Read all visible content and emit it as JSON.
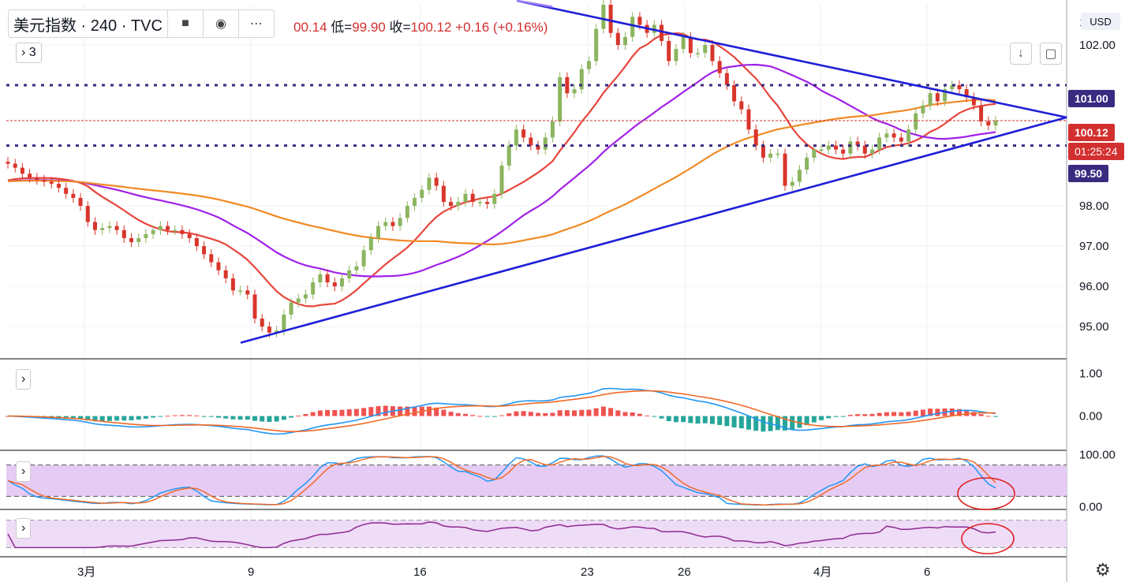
{
  "header": {
    "symbol": "美元指数 · 240 · TVC",
    "ohlc_tail": "00.14",
    "low_label": "低=",
    "low_value": "99.90",
    "close_label": "收=",
    "close_value": "100.12",
    "change": "+0.16 (+0.16%)"
  },
  "indicator_count": "3",
  "currency_label": "USD",
  "price_tags": {
    "resistance": "101.00",
    "last": "100.12",
    "countdown": "01:25:24",
    "support": "99.50"
  },
  "colors": {
    "up": "#8bb55f",
    "down": "#d8352b",
    "trend": "#1e1ed8",
    "ma_fast": "#e8453c",
    "ma_mid": "#a020e8",
    "ma_slow": "#f08a24",
    "level": "#3a2a80",
    "macd_line": "#2196f3",
    "signal_line": "#f06a28",
    "hist_pos": "#ef5350",
    "hist_neg": "#26a69a"
  },
  "chart_data": [
    {
      "type": "candlestick",
      "ylim": [
        94.2,
        103.0
      ],
      "y_ticks": [
        "95.00",
        "96.00",
        "97.00",
        "98.00",
        "102.00"
      ],
      "x_ticks": [
        "3月",
        "9",
        "16",
        "23",
        "26",
        "4月",
        "6"
      ],
      "horizontal_levels": [
        101.0,
        100.12,
        99.5
      ],
      "close_series": [
        99.05,
        98.95,
        98.8,
        98.7,
        98.65,
        98.6,
        98.55,
        98.45,
        98.3,
        98.2,
        98.0,
        97.6,
        97.4,
        97.45,
        97.5,
        97.4,
        97.2,
        97.1,
        97.2,
        97.3,
        97.4,
        97.5,
        97.4,
        97.4,
        97.3,
        97.2,
        97.0,
        96.8,
        96.6,
        96.4,
        96.2,
        95.9,
        95.9,
        95.8,
        95.2,
        95.0,
        94.85,
        94.9,
        95.3,
        95.6,
        95.7,
        95.8,
        96.1,
        96.3,
        96.1,
        96.0,
        96.2,
        96.4,
        96.5,
        96.9,
        97.2,
        97.5,
        97.6,
        97.5,
        97.7,
        98.0,
        98.2,
        98.4,
        98.7,
        98.5,
        98.1,
        98.0,
        98.1,
        98.3,
        98.1,
        98.1,
        98.05,
        98.3,
        99.0,
        99.5,
        99.9,
        99.7,
        99.5,
        99.4,
        99.7,
        100.1,
        101.2,
        100.8,
        100.9,
        101.4,
        101.6,
        102.4,
        103.0,
        102.3,
        102.0,
        102.2,
        102.7,
        102.5,
        102.3,
        102.5,
        102.1,
        101.6,
        101.9,
        102.2,
        101.8,
        101.8,
        102.0,
        101.6,
        101.3,
        101.0,
        100.6,
        100.4,
        99.9,
        99.5,
        99.2,
        99.3,
        99.3,
        98.5,
        98.6,
        98.9,
        99.2,
        99.4,
        99.4,
        99.5,
        99.4,
        99.3,
        99.6,
        99.5,
        99.3,
        99.4,
        99.7,
        99.8,
        99.7,
        99.6,
        99.9,
        100.3,
        100.5,
        100.8,
        100.6,
        100.9,
        101.0,
        100.9,
        100.7,
        100.5,
        100.1,
        100.0,
        100.12
      ],
      "trendlines": [
        {
          "from": [
            "9",
            94.6
          ],
          "to": [
            "4月后",
            100.25
          ]
        },
        {
          "from": [
            "19",
            103.1
          ],
          "to": [
            "4月后",
            100.25
          ]
        }
      ],
      "moving_averages": 3
    },
    {
      "type": "macd",
      "ylim": [
        -0.8,
        1.3
      ],
      "y_ticks": [
        "1.00",
        "0.00"
      ]
    },
    {
      "type": "stochastic",
      "ylim": [
        -5,
        105
      ],
      "y_ticks": [
        "100.00",
        "0.00"
      ],
      "bands": [
        80,
        20
      ]
    },
    {
      "type": "line",
      "bands": [
        70,
        30
      ]
    }
  ]
}
